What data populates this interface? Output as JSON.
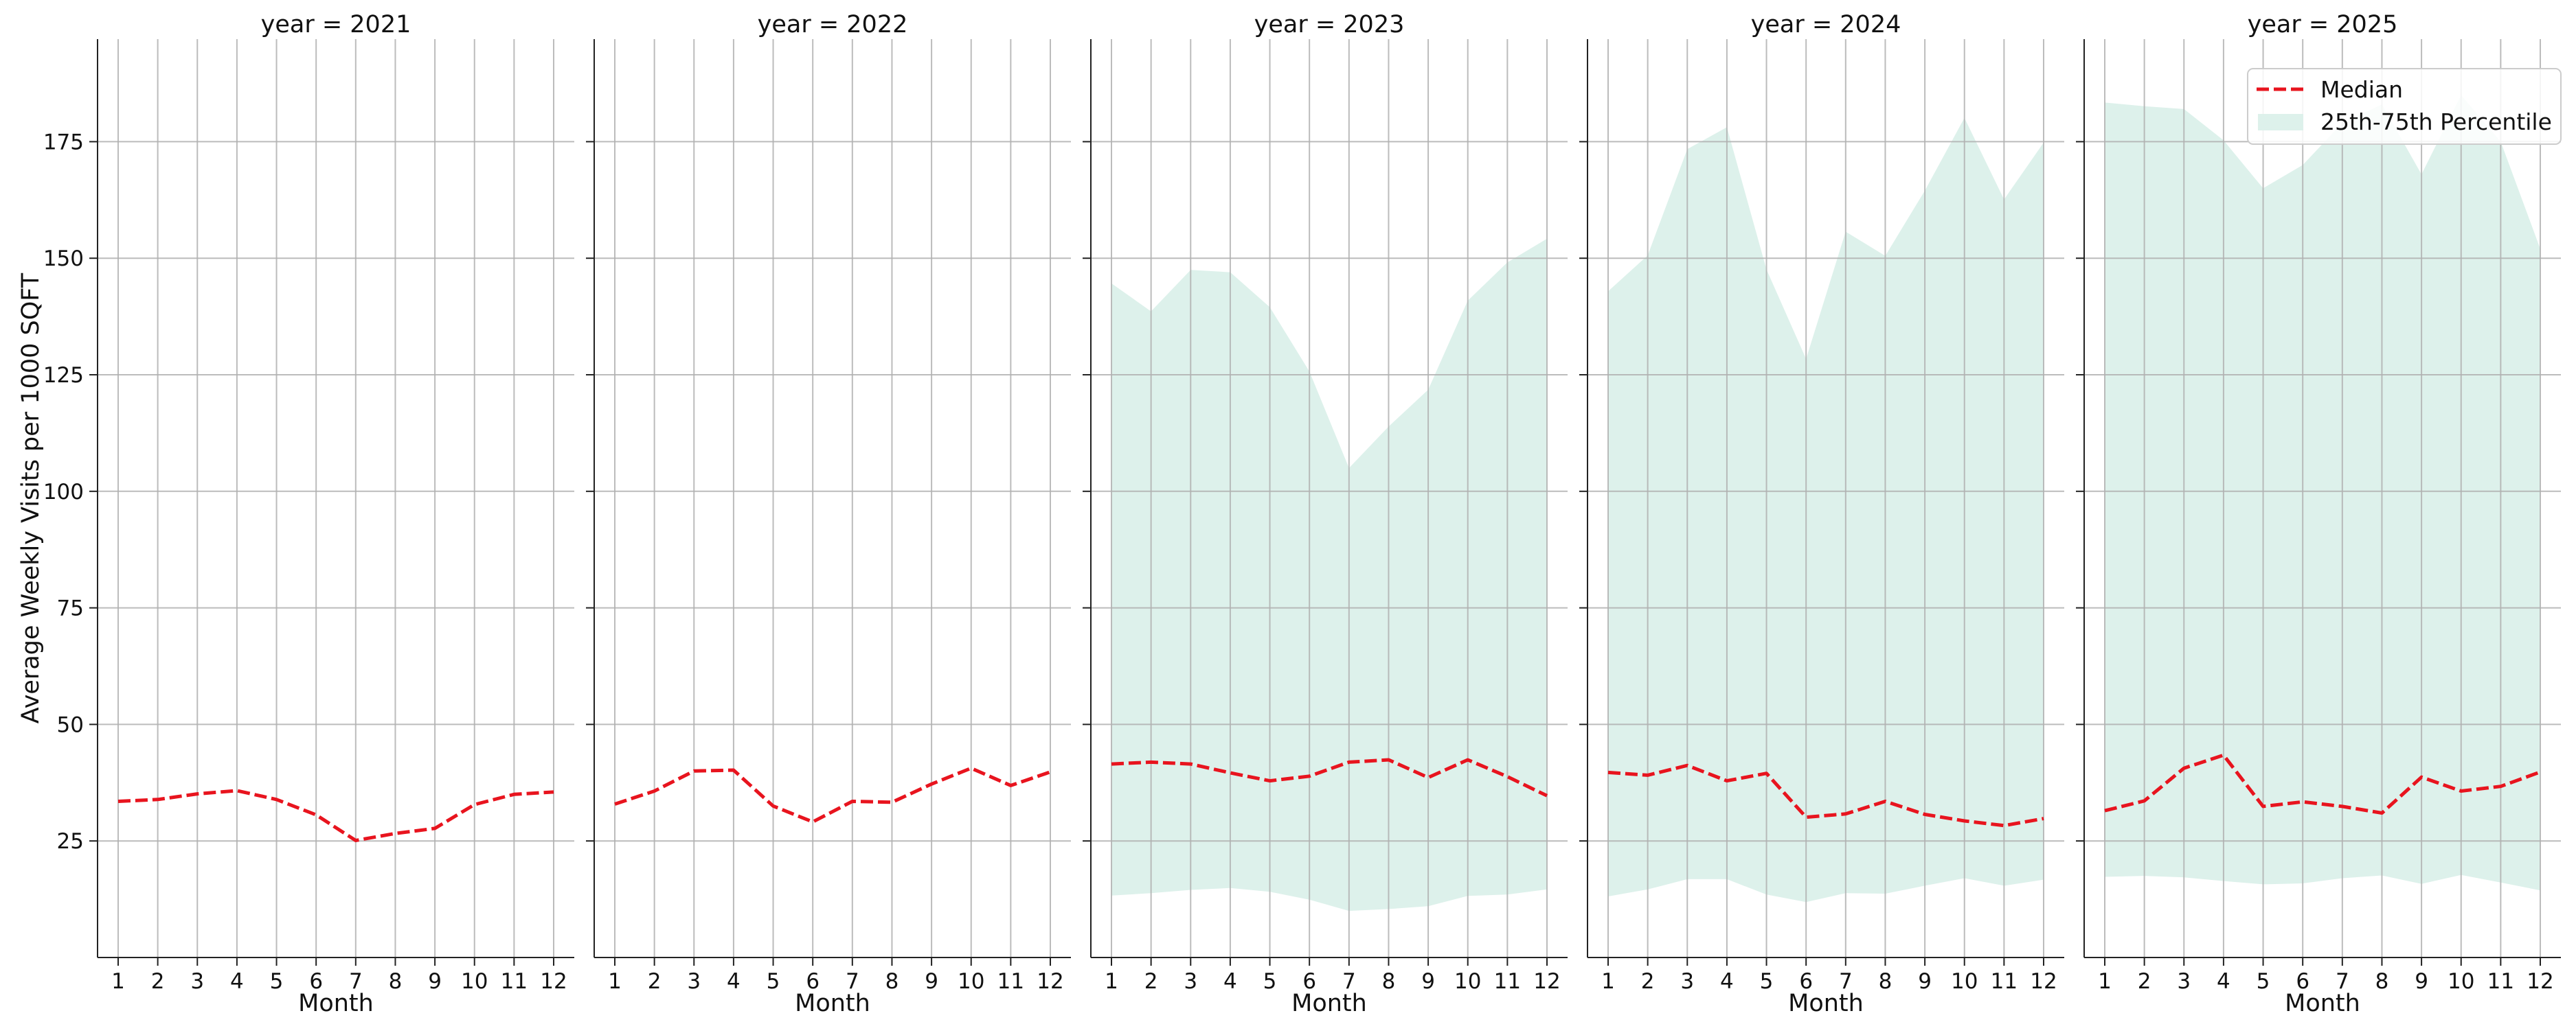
{
  "chart_data": {
    "type": "line",
    "ylabel": "Average Weekly Visits per 1000 SQFT",
    "xlabel": "Month",
    "x": [
      1,
      2,
      3,
      4,
      5,
      6,
      7,
      8,
      9,
      10,
      11,
      12
    ],
    "ylim": [
      0,
      197
    ],
    "yticks": [
      25,
      50,
      75,
      100,
      125,
      150,
      175
    ],
    "grid": true,
    "colors": {
      "median": "#e8141e",
      "band": "#ddf1eb"
    },
    "legend": {
      "placement": "top-right",
      "entries": [
        {
          "label": "Median"
        },
        {
          "label": "25th-75th Percentile"
        }
      ]
    },
    "facets": [
      {
        "title": "year = 2021",
        "median": [
          33.5,
          33.9,
          35.1,
          35.8,
          33.9,
          30.6,
          25.1,
          26.6,
          27.7,
          32.8,
          35.0,
          35.5
        ],
        "p25": null,
        "p75": null
      },
      {
        "title": "year = 2022",
        "median": [
          32.9,
          35.7,
          40.0,
          40.2,
          32.5,
          29.1,
          33.5,
          33.3,
          37.2,
          40.6,
          36.9,
          39.8
        ],
        "p25": null,
        "p75": null
      },
      {
        "title": "year = 2023",
        "median": [
          41.5,
          41.9,
          41.5,
          39.6,
          37.9,
          38.9,
          41.9,
          42.4,
          38.6,
          42.4,
          38.8,
          34.7
        ],
        "p25": [
          13.3,
          13.8,
          14.5,
          14.9,
          14.1,
          12.4,
          10.0,
          10.4,
          11.0,
          13.2,
          13.5,
          14.6
        ],
        "p75": [
          144.6,
          138.6,
          147.5,
          147.0,
          139.5,
          125.7,
          105.0,
          113.9,
          121.8,
          140.9,
          149.1,
          154.2
        ]
      },
      {
        "title": "year = 2024",
        "median": [
          39.7,
          39.1,
          41.2,
          37.9,
          39.5,
          30.1,
          30.8,
          33.5,
          30.7,
          29.3,
          28.3,
          29.8
        ],
        "p25": [
          13.1,
          14.6,
          16.8,
          16.8,
          13.5,
          11.9,
          13.8,
          13.7,
          15.4,
          17.0,
          15.4,
          16.7
        ],
        "p75": [
          142.9,
          150.6,
          173.4,
          178.1,
          147.6,
          128.4,
          155.7,
          150.5,
          164.5,
          180.1,
          162.6,
          174.8
        ]
      },
      {
        "title": "year = 2025",
        "median": [
          31.5,
          33.6,
          40.6,
          43.4,
          32.4,
          33.4,
          32.4,
          31.0,
          38.7,
          35.7,
          36.7,
          39.8
        ],
        "p25": [
          17.3,
          17.5,
          17.2,
          16.4,
          15.7,
          15.9,
          17.0,
          17.6,
          15.8,
          17.7,
          16.1,
          14.4
        ],
        "p75": [
          183.4,
          182.6,
          182.0,
          175.3,
          165.0,
          170.0,
          179.0,
          183.0,
          168.0,
          185.0,
          175.0,
          152.0
        ]
      }
    ]
  }
}
